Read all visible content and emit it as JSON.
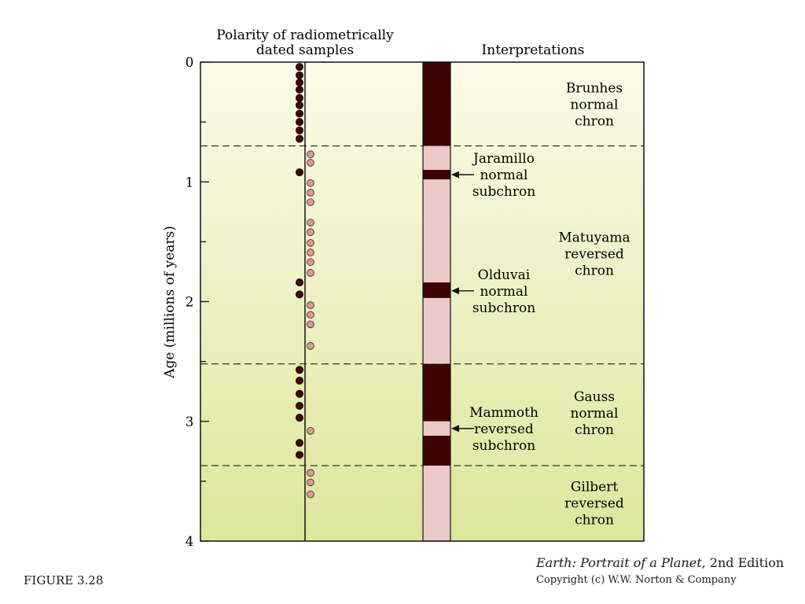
{
  "header": {
    "samples_title_line1": "Polarity of radiometrically",
    "samples_title_line2": "dated samples",
    "interp_title": "Interpretations"
  },
  "axis": {
    "label": "Age (millions of years)",
    "ticks": [
      "0",
      "1",
      "2",
      "3",
      "4"
    ],
    "min": 0,
    "max": 4
  },
  "colors": {
    "normal": "#3d0405",
    "reversed": "#ebc9c9",
    "reversed_dot": "#d99a9a",
    "bg_top": "#fbfbe9",
    "bg_bottom": "#dce79c"
  },
  "boundaries": [
    0.7,
    2.52,
    3.37
  ],
  "polarity_column": [
    {
      "from": 0.0,
      "to": 0.7,
      "polarity": "normal"
    },
    {
      "from": 0.7,
      "to": 0.9,
      "polarity": "reversed"
    },
    {
      "from": 0.9,
      "to": 0.98,
      "polarity": "normal"
    },
    {
      "from": 0.98,
      "to": 1.84,
      "polarity": "reversed"
    },
    {
      "from": 1.84,
      "to": 1.97,
      "polarity": "normal"
    },
    {
      "from": 1.97,
      "to": 2.52,
      "polarity": "reversed"
    },
    {
      "from": 2.52,
      "to": 3.0,
      "polarity": "normal"
    },
    {
      "from": 3.0,
      "to": 3.12,
      "polarity": "reversed"
    },
    {
      "from": 3.12,
      "to": 3.37,
      "polarity": "normal"
    },
    {
      "from": 3.37,
      "to": 4.0,
      "polarity": "reversed"
    }
  ],
  "samples": {
    "normal": [
      0.04,
      0.11,
      0.17,
      0.23,
      0.3,
      0.36,
      0.43,
      0.5,
      0.57,
      0.64,
      0.92,
      1.84,
      1.94,
      2.57,
      2.66,
      2.77,
      2.87,
      2.97,
      3.18,
      3.28
    ],
    "reversed": [
      0.77,
      0.84,
      1.01,
      1.09,
      1.17,
      1.34,
      1.42,
      1.51,
      1.59,
      1.67,
      1.76,
      2.03,
      2.11,
      2.19,
      2.37,
      3.08,
      3.43,
      3.51,
      3.61
    ]
  },
  "chrons": [
    {
      "lines": [
        "Brunhes",
        "normal",
        "chron"
      ],
      "age": 0.35
    },
    {
      "lines": [
        "Matuyama",
        "reversed",
        "chron"
      ],
      "age": 1.6
    },
    {
      "lines": [
        "Gauss",
        "normal",
        "chron"
      ],
      "age": 2.93
    },
    {
      "lines": [
        "Gilbert",
        "reversed",
        "chron"
      ],
      "age": 3.68
    }
  ],
  "subchrons": [
    {
      "lines": [
        "Jaramillo",
        "normal",
        "subchron"
      ],
      "age": 0.94
    },
    {
      "lines": [
        "Olduvai",
        "normal",
        "subchron"
      ],
      "age": 1.91
    },
    {
      "lines": [
        "Mammoth",
        "reversed",
        "subchron"
      ],
      "age": 3.06
    }
  ],
  "footer": {
    "figure": "FIGURE 3.28",
    "book_title": "Earth: Portrait of a Planet",
    "book_edition": ", 2nd Edition",
    "copyright": "Copyright (c) W.W. Norton & Company"
  }
}
